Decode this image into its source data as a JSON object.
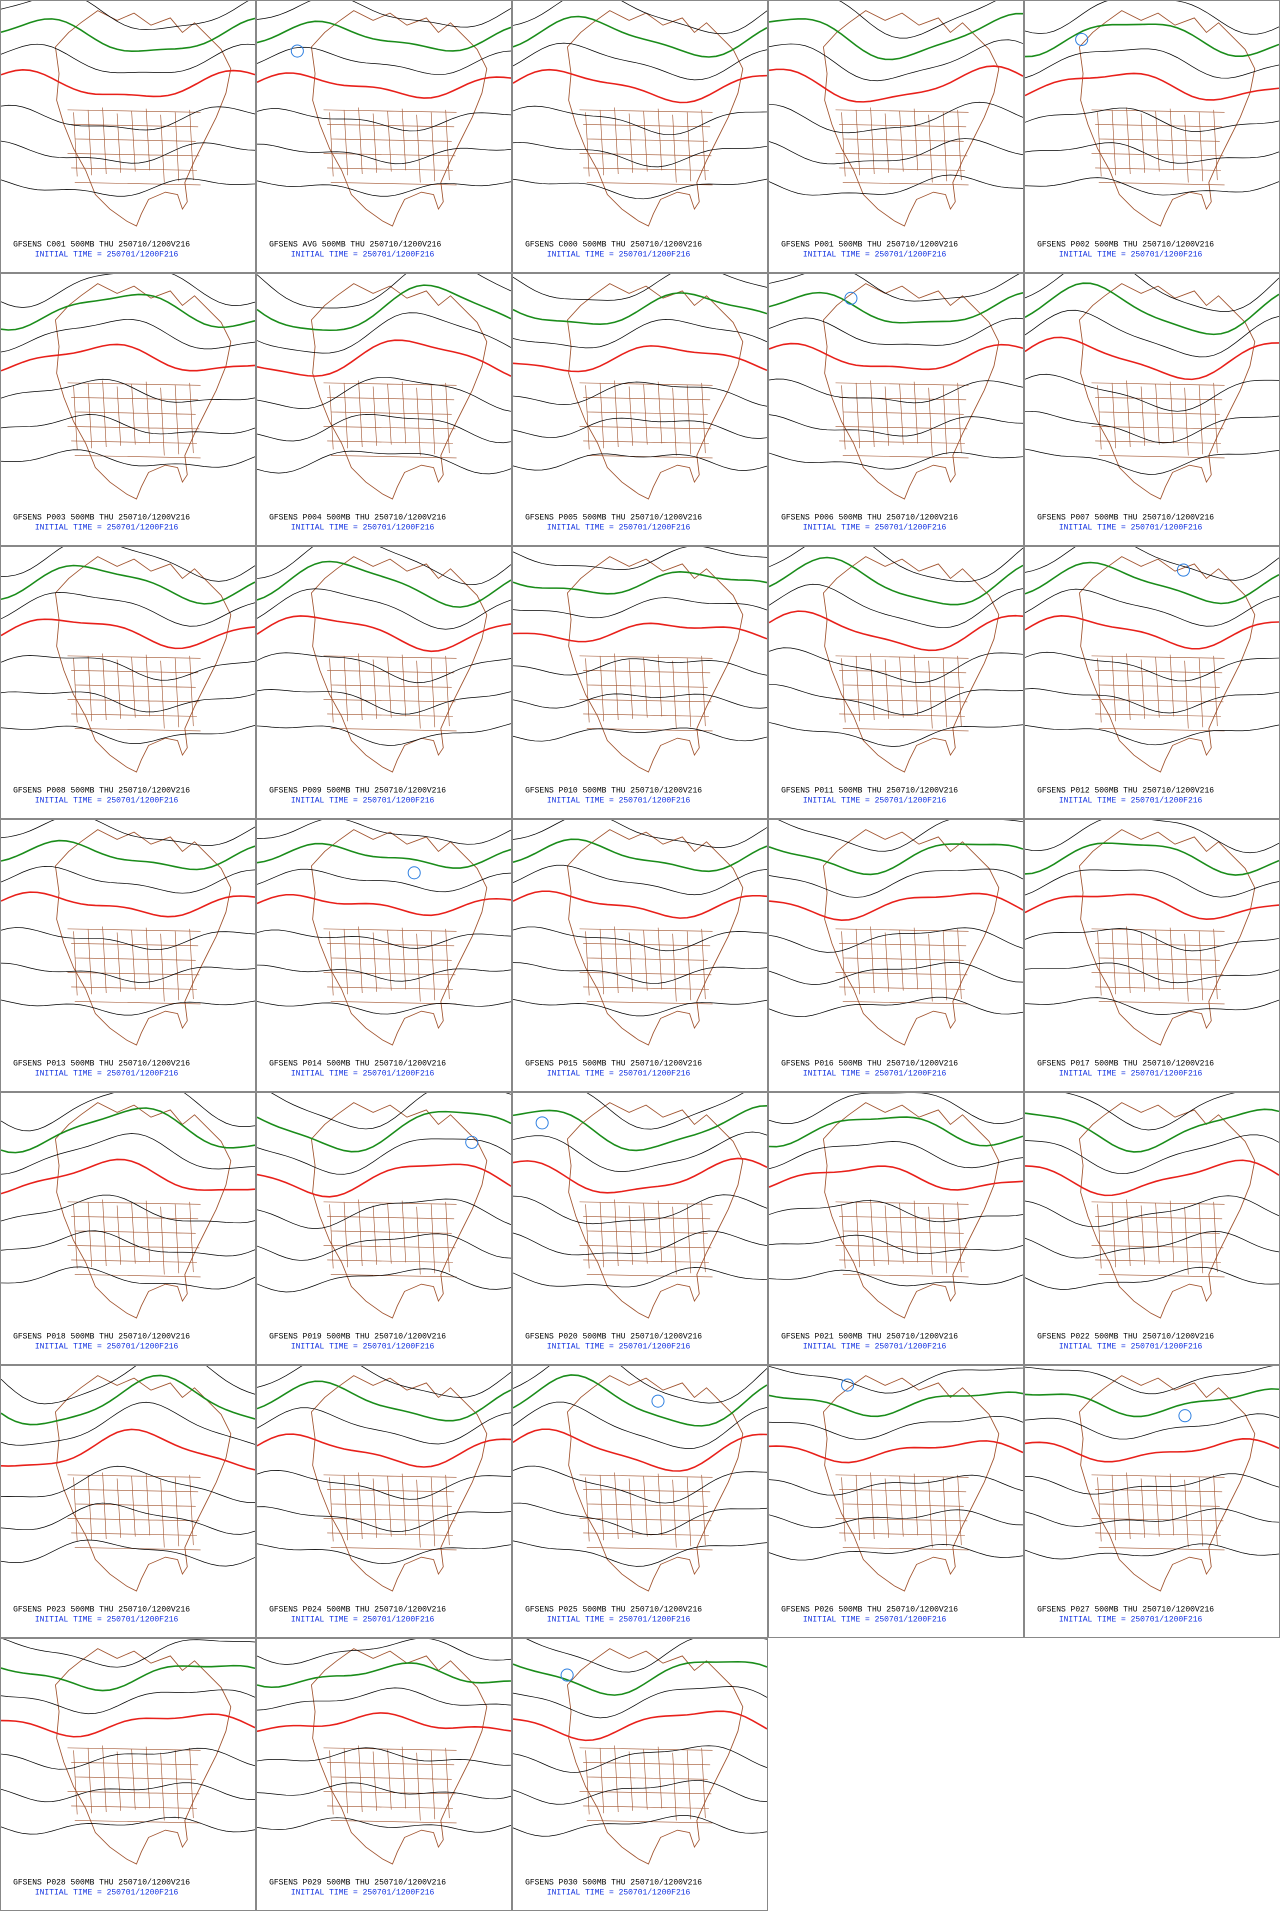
{
  "panels": [
    {
      "title": "GFSENS C001 500MB THU 250710/1200V216",
      "init_time": "INITIAL TIME = 250701/1200F216"
    },
    {
      "title": "GFSENS AVG 500MB THU 250710/1200V216",
      "init_time": "INITIAL TIME = 250701/1200F216"
    },
    {
      "title": "GFSENS C000 500MB THU 250710/1200V216",
      "init_time": "INITIAL TIME = 250701/1200F216"
    },
    {
      "title": "GFSENS P001 500MB THU 250710/1200V216",
      "init_time": "INITIAL TIME = 250701/1200F216"
    },
    {
      "title": "GFSENS P002 500MB THU 250710/1200V216",
      "init_time": "INITIAL TIME = 250701/1200F216"
    },
    {
      "title": "GFSENS P003 500MB THU 250710/1200V216",
      "init_time": "INITIAL TIME = 250701/1200F216"
    },
    {
      "title": "GFSENS P004 500MB THU 250710/1200V216",
      "init_time": "INITIAL TIME = 250701/1200F216"
    },
    {
      "title": "GFSENS P005 500MB THU 250710/1200V216",
      "init_time": "INITIAL TIME = 250701/1200F216"
    },
    {
      "title": "GFSENS P006 500MB THU 250710/1200V216",
      "init_time": "INITIAL TIME = 250701/1200F216"
    },
    {
      "title": "GFSENS P007 500MB THU 250710/1200V216",
      "init_time": "INITIAL TIME = 250701/1200F216"
    },
    {
      "title": "GFSENS P008 500MB THU 250710/1200V216",
      "init_time": "INITIAL TIME = 250701/1200F216"
    },
    {
      "title": "GFSENS P009 500MB THU 250710/1200V216",
      "init_time": "INITIAL TIME = 250701/1200F216"
    },
    {
      "title": "GFSENS P010 500MB THU 250710/1200V216",
      "init_time": "INITIAL TIME = 250701/1200F216"
    },
    {
      "title": "GFSENS P011 500MB THU 250710/1200V216",
      "init_time": "INITIAL TIME = 250701/1200F216"
    },
    {
      "title": "GFSENS P012 500MB THU 250710/1200V216",
      "init_time": "INITIAL TIME = 250701/1200F216"
    },
    {
      "title": "GFSENS P013 500MB THU 250710/1200V216",
      "init_time": "INITIAL TIME = 250701/1200F216"
    },
    {
      "title": "GFSENS P014 500MB THU 250710/1200V216",
      "init_time": "INITIAL TIME = 250701/1200F216"
    },
    {
      "title": "GFSENS P015 500MB THU 250710/1200V216",
      "init_time": "INITIAL TIME = 250701/1200F216"
    },
    {
      "title": "GFSENS P016 500MB THU 250710/1200V216",
      "init_time": "INITIAL TIME = 250701/1200F216"
    },
    {
      "title": "GFSENS P017 500MB THU 250710/1200V216",
      "init_time": "INITIAL TIME = 250701/1200F216"
    },
    {
      "title": "GFSENS P018 500MB THU 250710/1200V216",
      "init_time": "INITIAL TIME = 250701/1200F216"
    },
    {
      "title": "GFSENS P019 500MB THU 250710/1200V216",
      "init_time": "INITIAL TIME = 250701/1200F216"
    },
    {
      "title": "GFSENS P020 500MB THU 250710/1200V216",
      "init_time": "INITIAL TIME = 250701/1200F216"
    },
    {
      "title": "GFSENS P021 500MB THU 250710/1200V216",
      "init_time": "INITIAL TIME = 250701/1200F216"
    },
    {
      "title": "GFSENS P022 500MB THU 250710/1200V216",
      "init_time": "INITIAL TIME = 250701/1200F216"
    },
    {
      "title": "GFSENS P023 500MB THU 250710/1200V216",
      "init_time": "INITIAL TIME = 250701/1200F216"
    },
    {
      "title": "GFSENS P024 500MB THU 250710/1200V216",
      "init_time": "INITIAL TIME = 250701/1200F216"
    },
    {
      "title": "GFSENS P025 500MB THU 250710/1200V216",
      "init_time": "INITIAL TIME = 250701/1200F216"
    },
    {
      "title": "GFSENS P026 500MB THU 250710/1200V216",
      "init_time": "INITIAL TIME = 250701/1200F216"
    },
    {
      "title": "GFSENS P027 500MB THU 250710/1200V216",
      "init_time": "INITIAL TIME = 250701/1200F216"
    },
    {
      "title": "GFSENS P028 500MB THU 250710/1200V216",
      "init_time": "INITIAL TIME = 250701/1200F216"
    },
    {
      "title": "GFSENS P029 500MB THU 250710/1200V216",
      "init_time": "INITIAL TIME = 250701/1200F216"
    },
    {
      "title": "GFSENS P030 500MB THU 250710/1200V216",
      "init_time": "INITIAL TIME = 250701/1200F216"
    }
  ]
}
